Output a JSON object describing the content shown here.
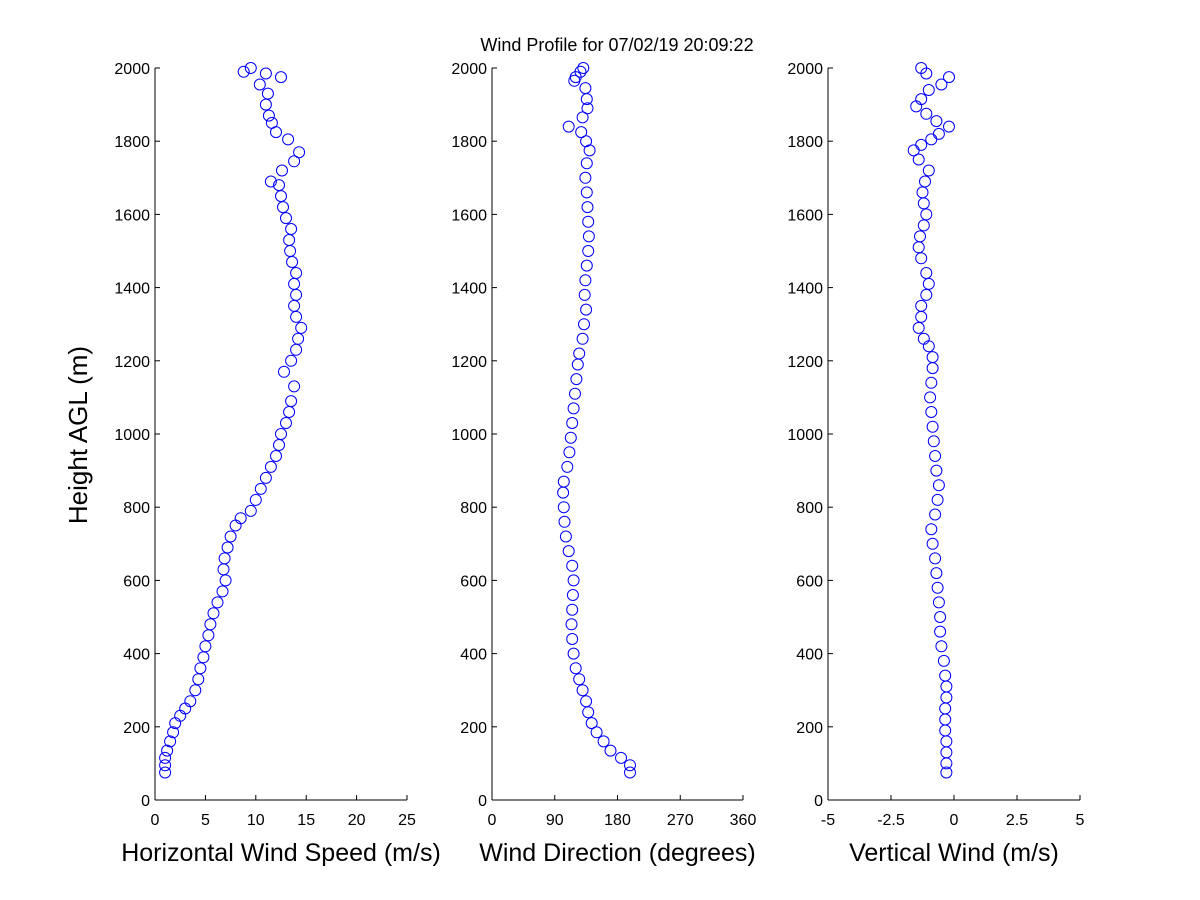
{
  "figure": {
    "title": "Wind Profile for  07/02/19 20:09:22",
    "ylabel": "Height AGL (m)"
  },
  "chart_data": [
    {
      "type": "scatter",
      "xlabel": "Horizontal Wind Speed (m/s)",
      "ylabel": "Height AGL (m)",
      "xlim": [
        0,
        25
      ],
      "ylim": [
        0,
        2000
      ],
      "xticks": [
        "0",
        "5",
        "10",
        "15",
        "20",
        "25"
      ],
      "yticks": [
        "0",
        "200",
        "400",
        "600",
        "800",
        "1000",
        "1200",
        "1400",
        "1600",
        "1800",
        "2000"
      ],
      "marker": "open-circle",
      "color": "#0000ff",
      "points": [
        [
          1,
          75
        ],
        [
          1,
          95
        ],
        [
          1,
          115
        ],
        [
          1.2,
          135
        ],
        [
          1.5,
          160
        ],
        [
          1.8,
          185
        ],
        [
          2,
          210
        ],
        [
          2.5,
          230
        ],
        [
          3,
          250
        ],
        [
          3.5,
          270
        ],
        [
          4,
          300
        ],
        [
          4.3,
          330
        ],
        [
          4.5,
          360
        ],
        [
          4.8,
          390
        ],
        [
          5,
          420
        ],
        [
          5.3,
          450
        ],
        [
          5.5,
          480
        ],
        [
          5.8,
          510
        ],
        [
          6.2,
          540
        ],
        [
          6.7,
          570
        ],
        [
          7,
          600
        ],
        [
          6.8,
          630
        ],
        [
          6.9,
          660
        ],
        [
          7.2,
          690
        ],
        [
          7.5,
          720
        ],
        [
          8,
          750
        ],
        [
          8.5,
          770
        ],
        [
          9.5,
          790
        ],
        [
          10,
          820
        ],
        [
          10.5,
          850
        ],
        [
          11,
          880
        ],
        [
          11.5,
          910
        ],
        [
          12,
          940
        ],
        [
          12.3,
          970
        ],
        [
          12.5,
          1000
        ],
        [
          13,
          1030
        ],
        [
          13.3,
          1060
        ],
        [
          13.5,
          1090
        ],
        [
          13.8,
          1130
        ],
        [
          12.8,
          1170
        ],
        [
          13.5,
          1200
        ],
        [
          14,
          1230
        ],
        [
          14.2,
          1260
        ],
        [
          14.5,
          1290
        ],
        [
          14,
          1320
        ],
        [
          13.8,
          1350
        ],
        [
          14,
          1380
        ],
        [
          13.8,
          1410
        ],
        [
          14,
          1440
        ],
        [
          13.6,
          1470
        ],
        [
          13.4,
          1500
        ],
        [
          13.3,
          1530
        ],
        [
          13.5,
          1560
        ],
        [
          13,
          1590
        ],
        [
          12.7,
          1620
        ],
        [
          12.5,
          1650
        ],
        [
          12.3,
          1680
        ],
        [
          11.5,
          1690
        ],
        [
          12.6,
          1720
        ],
        [
          13.8,
          1745
        ],
        [
          14.3,
          1770
        ],
        [
          13.2,
          1805
        ],
        [
          12,
          1825
        ],
        [
          11.6,
          1850
        ],
        [
          11.3,
          1870
        ],
        [
          11,
          1900
        ],
        [
          11.2,
          1930
        ],
        [
          10.4,
          1955
        ],
        [
          12.5,
          1975
        ],
        [
          11,
          1985
        ],
        [
          9.5,
          2000
        ],
        [
          8.8,
          1990
        ]
      ]
    },
    {
      "type": "scatter",
      "xlabel": "Wind Direction (degrees)",
      "ylabel": "",
      "xlim": [
        0,
        360
      ],
      "ylim": [
        0,
        2000
      ],
      "xticks": [
        "0",
        "90",
        "180",
        "270",
        "360"
      ],
      "yticks": [
        "0",
        "200",
        "400",
        "600",
        "800",
        "1000",
        "1200",
        "1400",
        "1600",
        "1800",
        "2000"
      ],
      "marker": "open-circle",
      "color": "#0000ff",
      "points": [
        [
          198,
          75
        ],
        [
          198,
          95
        ],
        [
          185,
          115
        ],
        [
          170,
          135
        ],
        [
          160,
          160
        ],
        [
          150,
          185
        ],
        [
          143,
          210
        ],
        [
          138,
          240
        ],
        [
          135,
          270
        ],
        [
          130,
          300
        ],
        [
          125,
          330
        ],
        [
          120,
          360
        ],
        [
          117,
          400
        ],
        [
          115,
          440
        ],
        [
          114,
          480
        ],
        [
          115,
          520
        ],
        [
          116,
          560
        ],
        [
          117,
          600
        ],
        [
          115,
          640
        ],
        [
          110,
          680
        ],
        [
          106,
          720
        ],
        [
          104,
          760
        ],
        [
          103,
          800
        ],
        [
          102,
          840
        ],
        [
          103,
          870
        ],
        [
          108,
          910
        ],
        [
          111,
          950
        ],
        [
          113,
          990
        ],
        [
          115,
          1030
        ],
        [
          117,
          1070
        ],
        [
          119,
          1110
        ],
        [
          121,
          1150
        ],
        [
          123,
          1190
        ],
        [
          125,
          1220
        ],
        [
          130,
          1260
        ],
        [
          132,
          1300
        ],
        [
          135,
          1340
        ],
        [
          133,
          1380
        ],
        [
          134,
          1420
        ],
        [
          136,
          1460
        ],
        [
          138,
          1500
        ],
        [
          139,
          1540
        ],
        [
          138,
          1580
        ],
        [
          137,
          1620
        ],
        [
          136,
          1660
        ],
        [
          134,
          1700
        ],
        [
          136,
          1740
        ],
        [
          140,
          1775
        ],
        [
          135,
          1800
        ],
        [
          128,
          1825
        ],
        [
          110,
          1840
        ],
        [
          130,
          1865
        ],
        [
          137,
          1890
        ],
        [
          136,
          1915
        ],
        [
          134,
          1945
        ],
        [
          118,
          1965
        ],
        [
          120,
          1975
        ],
        [
          127,
          1990
        ],
        [
          131,
          2000
        ]
      ]
    },
    {
      "type": "scatter",
      "xlabel": "Vertical Wind (m/s)",
      "ylabel": "",
      "xlim": [
        -5,
        5
      ],
      "ylim": [
        0,
        2000
      ],
      "xticks": [
        "-5",
        "-2.5",
        "0",
        "2.5",
        "5"
      ],
      "yticks": [
        "0",
        "200",
        "400",
        "600",
        "800",
        "1000",
        "1200",
        "1400",
        "1600",
        "1800",
        "2000"
      ],
      "marker": "open-circle",
      "color": "#0000ff",
      "points": [
        [
          -0.3,
          75
        ],
        [
          -0.3,
          100
        ],
        [
          -0.3,
          130
        ],
        [
          -0.3,
          160
        ],
        [
          -0.35,
          190
        ],
        [
          -0.35,
          220
        ],
        [
          -0.35,
          250
        ],
        [
          -0.3,
          280
        ],
        [
          -0.3,
          310
        ],
        [
          -0.35,
          340
        ],
        [
          -0.4,
          380
        ],
        [
          -0.5,
          420
        ],
        [
          -0.55,
          460
        ],
        [
          -0.55,
          500
        ],
        [
          -0.6,
          540
        ],
        [
          -0.65,
          580
        ],
        [
          -0.7,
          620
        ],
        [
          -0.75,
          660
        ],
        [
          -0.85,
          700
        ],
        [
          -0.9,
          740
        ],
        [
          -0.75,
          780
        ],
        [
          -0.65,
          820
        ],
        [
          -0.6,
          860
        ],
        [
          -0.7,
          900
        ],
        [
          -0.75,
          940
        ],
        [
          -0.8,
          980
        ],
        [
          -0.85,
          1020
        ],
        [
          -0.9,
          1060
        ],
        [
          -0.95,
          1100
        ],
        [
          -0.9,
          1140
        ],
        [
          -0.85,
          1180
        ],
        [
          -0.85,
          1210
        ],
        [
          -1,
          1240
        ],
        [
          -1.2,
          1260
        ],
        [
          -1.4,
          1290
        ],
        [
          -1.3,
          1320
        ],
        [
          -1.3,
          1350
        ],
        [
          -1.1,
          1380
        ],
        [
          -1,
          1410
        ],
        [
          -1.1,
          1440
        ],
        [
          -1.3,
          1480
        ],
        [
          -1.4,
          1510
        ],
        [
          -1.35,
          1540
        ],
        [
          -1.2,
          1570
        ],
        [
          -1.1,
          1600
        ],
        [
          -1.2,
          1630
        ],
        [
          -1.25,
          1660
        ],
        [
          -1.15,
          1690
        ],
        [
          -1,
          1720
        ],
        [
          -1.4,
          1750
        ],
        [
          -1.6,
          1775
        ],
        [
          -1.3,
          1790
        ],
        [
          -0.9,
          1805
        ],
        [
          -0.6,
          1820
        ],
        [
          -0.2,
          1840
        ],
        [
          -0.7,
          1855
        ],
        [
          -1.1,
          1875
        ],
        [
          -1.5,
          1895
        ],
        [
          -1.3,
          1915
        ],
        [
          -1,
          1940
        ],
        [
          -0.5,
          1955
        ],
        [
          -0.2,
          1975
        ],
        [
          -1.1,
          1985
        ],
        [
          -1.3,
          2000
        ]
      ]
    }
  ]
}
